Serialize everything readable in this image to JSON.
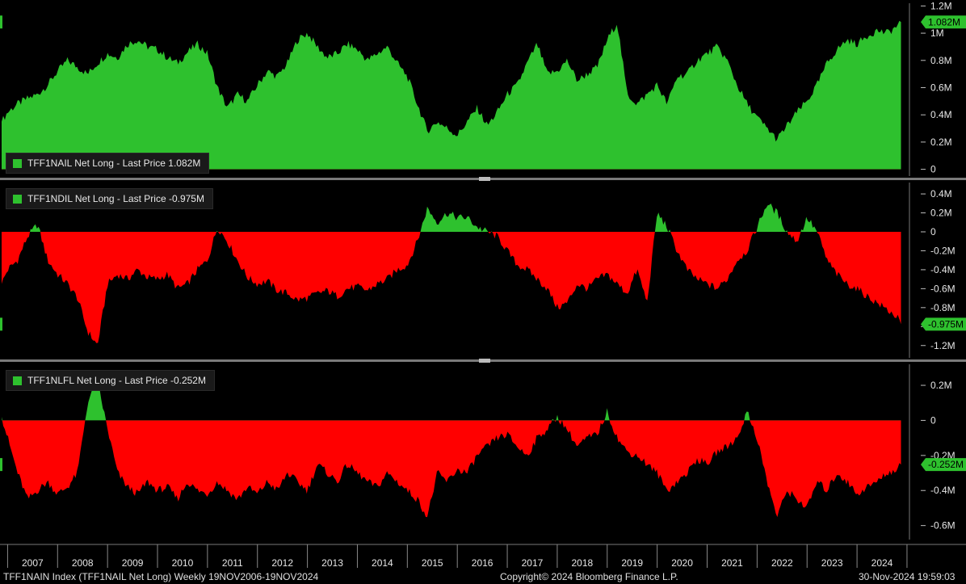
{
  "footer": {
    "left": "TFF1NAIN Index (TFF1NAIL Net Long)  Weekly 19NOV2006-19NOV2024",
    "center": "Copyright© 2024 Bloomberg Finance L.P.",
    "right": "30-Nov-2024 19:59:03"
  },
  "colors": {
    "positive": "#2ec12e",
    "negative": "#ff0000",
    "background": "#000000",
    "divider": "#7a7a7a"
  },
  "chart_data": [
    {
      "type": "area",
      "name": "TFF1NAIL",
      "legend": "TFF1NAIL Net Long - Last Price 1.082M",
      "last_label": "1.082M",
      "last_value": 1.082,
      "ylim": [
        -0.05,
        1.22
      ],
      "yticks": [
        0,
        0.2,
        0.4,
        0.6,
        0.8,
        1.0,
        1.2
      ],
      "ytick_labels": [
        "0",
        "0.2M",
        "0.4M",
        "0.6M",
        "0.8M",
        "1M",
        "1.2M"
      ],
      "x": [
        2006.88,
        2007.0,
        2007.2,
        2007.4,
        2007.6,
        2007.8,
        2008.0,
        2008.2,
        2008.4,
        2008.6,
        2008.8,
        2009.0,
        2009.2,
        2009.4,
        2009.6,
        2009.8,
        2010.0,
        2010.2,
        2010.4,
        2010.6,
        2010.8,
        2011.0,
        2011.2,
        2011.4,
        2011.6,
        2011.8,
        2012.0,
        2012.2,
        2012.4,
        2012.6,
        2012.8,
        2013.0,
        2013.2,
        2013.4,
        2013.6,
        2013.8,
        2014.0,
        2014.2,
        2014.4,
        2014.6,
        2014.8,
        2015.0,
        2015.2,
        2015.4,
        2015.6,
        2015.8,
        2016.0,
        2016.2,
        2016.4,
        2016.6,
        2016.8,
        2017.0,
        2017.2,
        2017.4,
        2017.6,
        2017.8,
        2018.0,
        2018.2,
        2018.4,
        2018.6,
        2018.8,
        2019.0,
        2019.2,
        2019.4,
        2019.6,
        2019.8,
        2020.0,
        2020.2,
        2020.4,
        2020.6,
        2020.8,
        2021.0,
        2021.2,
        2021.4,
        2021.6,
        2021.8,
        2022.0,
        2022.2,
        2022.4,
        2022.6,
        2022.8,
        2023.0,
        2023.2,
        2023.4,
        2023.6,
        2023.8,
        2024.0,
        2024.2,
        2024.4,
        2024.6,
        2024.8,
        2024.88
      ],
      "values": [
        0.35,
        0.42,
        0.48,
        0.52,
        0.55,
        0.62,
        0.72,
        0.8,
        0.75,
        0.7,
        0.78,
        0.85,
        0.82,
        0.92,
        0.95,
        0.9,
        0.88,
        0.82,
        0.78,
        0.86,
        0.92,
        0.85,
        0.6,
        0.45,
        0.55,
        0.5,
        0.62,
        0.72,
        0.68,
        0.78,
        0.95,
        1.0,
        0.9,
        0.82,
        0.85,
        0.92,
        0.88,
        0.8,
        0.85,
        0.9,
        0.78,
        0.68,
        0.48,
        0.28,
        0.35,
        0.3,
        0.25,
        0.35,
        0.45,
        0.32,
        0.42,
        0.55,
        0.62,
        0.78,
        0.92,
        0.7,
        0.72,
        0.8,
        0.65,
        0.7,
        0.75,
        0.95,
        1.08,
        0.55,
        0.48,
        0.55,
        0.62,
        0.48,
        0.68,
        0.7,
        0.8,
        0.85,
        0.9,
        0.8,
        0.62,
        0.48,
        0.38,
        0.3,
        0.22,
        0.32,
        0.42,
        0.5,
        0.62,
        0.78,
        0.88,
        0.95,
        0.92,
        0.98,
        1.02,
        1.0,
        1.05,
        1.082
      ]
    },
    {
      "type": "area",
      "name": "TFF1NDIL",
      "legend": "TFF1NDIL Net Long - Last Price -0.975M",
      "last_label": "-0.975M",
      "last_value": -0.975,
      "ylim": [
        -1.33,
        0.52
      ],
      "yticks": [
        -1.2,
        -1.0,
        -0.8,
        -0.6,
        -0.4,
        -0.2,
        0,
        0.2,
        0.4
      ],
      "ytick_labels": [
        "-1.2M",
        "-1M",
        "-0.8M",
        "-0.6M",
        "-0.4M",
        "-0.2M",
        "0",
        "0.2M",
        "0.4M"
      ],
      "x": [
        2006.88,
        2007.0,
        2007.2,
        2007.4,
        2007.6,
        2007.8,
        2008.0,
        2008.2,
        2008.4,
        2008.6,
        2008.8,
        2009.0,
        2009.2,
        2009.4,
        2009.6,
        2009.8,
        2010.0,
        2010.2,
        2010.4,
        2010.6,
        2010.8,
        2011.0,
        2011.2,
        2011.4,
        2011.6,
        2011.8,
        2012.0,
        2012.2,
        2012.4,
        2012.6,
        2012.8,
        2013.0,
        2013.2,
        2013.4,
        2013.6,
        2013.8,
        2014.0,
        2014.2,
        2014.4,
        2014.6,
        2014.8,
        2015.0,
        2015.2,
        2015.4,
        2015.6,
        2015.8,
        2016.0,
        2016.2,
        2016.4,
        2016.6,
        2016.8,
        2017.0,
        2017.2,
        2017.4,
        2017.6,
        2017.8,
        2018.0,
        2018.2,
        2018.4,
        2018.6,
        2018.8,
        2019.0,
        2019.2,
        2019.4,
        2019.6,
        2019.8,
        2020.0,
        2020.2,
        2020.4,
        2020.6,
        2020.8,
        2021.0,
        2021.2,
        2021.4,
        2021.6,
        2021.8,
        2022.0,
        2022.2,
        2022.4,
        2022.6,
        2022.8,
        2023.0,
        2023.2,
        2023.4,
        2023.6,
        2023.8,
        2024.0,
        2024.2,
        2024.4,
        2024.6,
        2024.8,
        2024.88
      ],
      "values": [
        -0.55,
        -0.4,
        -0.3,
        -0.05,
        0.08,
        -0.3,
        -0.45,
        -0.55,
        -0.7,
        -1.05,
        -1.2,
        -0.55,
        -0.45,
        -0.5,
        -0.4,
        -0.48,
        -0.5,
        -0.45,
        -0.6,
        -0.55,
        -0.4,
        -0.3,
        0.05,
        -0.1,
        -0.3,
        -0.48,
        -0.55,
        -0.52,
        -0.62,
        -0.65,
        -0.72,
        -0.7,
        -0.65,
        -0.62,
        -0.68,
        -0.6,
        -0.58,
        -0.62,
        -0.55,
        -0.5,
        -0.4,
        -0.35,
        -0.1,
        0.25,
        0.1,
        0.2,
        0.15,
        0.15,
        0.05,
        0.0,
        -0.05,
        -0.2,
        -0.35,
        -0.4,
        -0.5,
        -0.6,
        -0.8,
        -0.75,
        -0.55,
        -0.6,
        -0.5,
        -0.45,
        -0.55,
        -0.65,
        -0.4,
        -0.75,
        0.2,
        0.05,
        -0.2,
        -0.4,
        -0.5,
        -0.55,
        -0.6,
        -0.5,
        -0.3,
        -0.2,
        0.05,
        0.3,
        0.2,
        0.0,
        -0.1,
        0.15,
        0.0,
        -0.3,
        -0.45,
        -0.55,
        -0.6,
        -0.68,
        -0.75,
        -0.82,
        -0.9,
        -0.975
      ]
    },
    {
      "type": "area",
      "name": "TFF1NLFL",
      "legend": "TFF1NLFL Net Long - Last Price -0.252M",
      "last_label": "-0.252M",
      "last_value": -0.252,
      "ylim": [
        -0.68,
        0.32
      ],
      "yticks": [
        -0.6,
        -0.4,
        -0.2,
        0,
        0.2
      ],
      "ytick_labels": [
        "-0.6M",
        "-0.4M",
        "-0.2M",
        "0",
        "0.2M"
      ],
      "x": [
        2006.88,
        2007.0,
        2007.2,
        2007.4,
        2007.6,
        2007.8,
        2008.0,
        2008.2,
        2008.4,
        2008.6,
        2008.8,
        2009.0,
        2009.2,
        2009.4,
        2009.6,
        2009.8,
        2010.0,
        2010.2,
        2010.4,
        2010.6,
        2010.8,
        2011.0,
        2011.2,
        2011.4,
        2011.6,
        2011.8,
        2012.0,
        2012.2,
        2012.4,
        2012.6,
        2012.8,
        2013.0,
        2013.2,
        2013.4,
        2013.6,
        2013.8,
        2014.0,
        2014.2,
        2014.4,
        2014.6,
        2014.8,
        2015.0,
        2015.2,
        2015.4,
        2015.6,
        2015.8,
        2016.0,
        2016.2,
        2016.4,
        2016.6,
        2016.8,
        2017.0,
        2017.2,
        2017.4,
        2017.6,
        2017.8,
        2018.0,
        2018.2,
        2018.4,
        2018.6,
        2018.8,
        2019.0,
        2019.2,
        2019.4,
        2019.6,
        2019.8,
        2020.0,
        2020.2,
        2020.4,
        2020.6,
        2020.8,
        2021.0,
        2021.2,
        2021.4,
        2021.6,
        2021.8,
        2022.0,
        2022.2,
        2022.4,
        2022.6,
        2022.8,
        2023.0,
        2023.2,
        2023.4,
        2023.6,
        2023.8,
        2024.0,
        2024.2,
        2024.4,
        2024.6,
        2024.8,
        2024.88
      ],
      "values": [
        0.02,
        -0.1,
        -0.3,
        -0.45,
        -0.4,
        -0.35,
        -0.42,
        -0.38,
        -0.3,
        0.1,
        0.22,
        -0.05,
        -0.3,
        -0.38,
        -0.42,
        -0.35,
        -0.4,
        -0.38,
        -0.45,
        -0.35,
        -0.4,
        -0.42,
        -0.35,
        -0.4,
        -0.45,
        -0.38,
        -0.42,
        -0.35,
        -0.4,
        -0.3,
        -0.35,
        -0.4,
        -0.25,
        -0.3,
        -0.35,
        -0.25,
        -0.3,
        -0.35,
        -0.38,
        -0.3,
        -0.35,
        -0.4,
        -0.45,
        -0.55,
        -0.3,
        -0.35,
        -0.28,
        -0.3,
        -0.2,
        -0.15,
        -0.1,
        -0.08,
        -0.15,
        -0.2,
        -0.1,
        -0.05,
        0.02,
        -0.05,
        -0.15,
        -0.1,
        -0.08,
        0.05,
        -0.1,
        -0.18,
        -0.2,
        -0.25,
        -0.3,
        -0.4,
        -0.35,
        -0.3,
        -0.22,
        -0.25,
        -0.18,
        -0.15,
        -0.1,
        0.05,
        -0.1,
        -0.35,
        -0.55,
        -0.4,
        -0.45,
        -0.5,
        -0.35,
        -0.4,
        -0.3,
        -0.35,
        -0.42,
        -0.38,
        -0.35,
        -0.3,
        -0.28,
        -0.252
      ]
    }
  ],
  "x_axis": {
    "year_labels": [
      "2007",
      "2008",
      "2009",
      "2010",
      "2011",
      "2012",
      "2013",
      "2014",
      "2015",
      "2016",
      "2017",
      "2018",
      "2019",
      "2020",
      "2021",
      "2022",
      "2023",
      "2024"
    ]
  }
}
